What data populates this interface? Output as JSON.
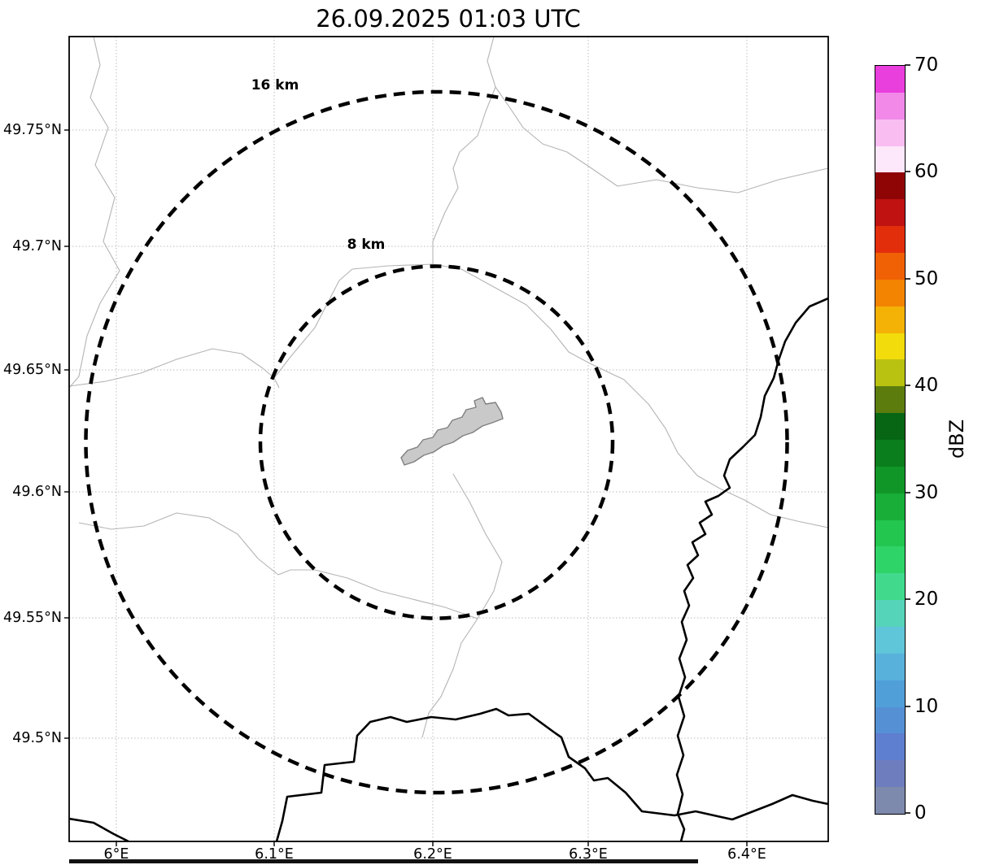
{
  "title": "26.09.2025 01:03 UTC",
  "map": {
    "x_tick_labels": [
      "6°E",
      "6.1°E",
      "6.2°E",
      "6.3°E",
      "6.4°E"
    ],
    "y_tick_labels": [
      "49.75°N",
      "49.7°N",
      "49.65°N",
      "49.6°N",
      "49.55°N",
      "49.5°N"
    ],
    "range_rings": {
      "outer_label": "16 km",
      "inner_label": "8 km"
    }
  },
  "colorbar": {
    "label": "dBZ",
    "tick_labels": [
      "70",
      "60",
      "50",
      "40",
      "30",
      "20",
      "10",
      "0"
    ],
    "segment_colors_bottom_to_top": [
      "#7d89ad",
      "#6d7dbe",
      "#5e7ecf",
      "#5590d5",
      "#509fd9",
      "#57b1db",
      "#5fc5d8",
      "#55d4b9",
      "#41da8d",
      "#2fd468",
      "#23c64f",
      "#18ae38",
      "#109627",
      "#0a7e1c",
      "#066614",
      "#5c7d0e",
      "#b9c210",
      "#f2dc0b",
      "#f4b106",
      "#f28402",
      "#f06005",
      "#e32e0c",
      "#c01210",
      "#8f0506",
      "#fde7fa",
      "#f9bdf2",
      "#f289e9",
      "#e93fdc"
    ]
  },
  "chart_data": {
    "type": "map",
    "title": "26.09.2025 01:03 UTC",
    "description": "Weather radar reflectivity map with 8 km and 16 km range rings centered on a radar site; no precipitation echoes visible in this frame",
    "x_ticks": [
      "6°E",
      "6.1°E",
      "6.2°E",
      "6.3°E",
      "6.4°E"
    ],
    "y_ticks": [
      "49.75°N",
      "49.7°N",
      "49.65°N",
      "49.6°N",
      "49.55°N",
      "49.5°N"
    ],
    "range_rings_km": [
      8,
      16
    ],
    "grid": true,
    "colorbar": {
      "label": "dBZ",
      "min": 0,
      "max": 70,
      "tick_values": [
        0,
        10,
        20,
        30,
        40,
        50,
        60,
        70
      ],
      "n_segments": 28,
      "position": "right"
    }
  }
}
